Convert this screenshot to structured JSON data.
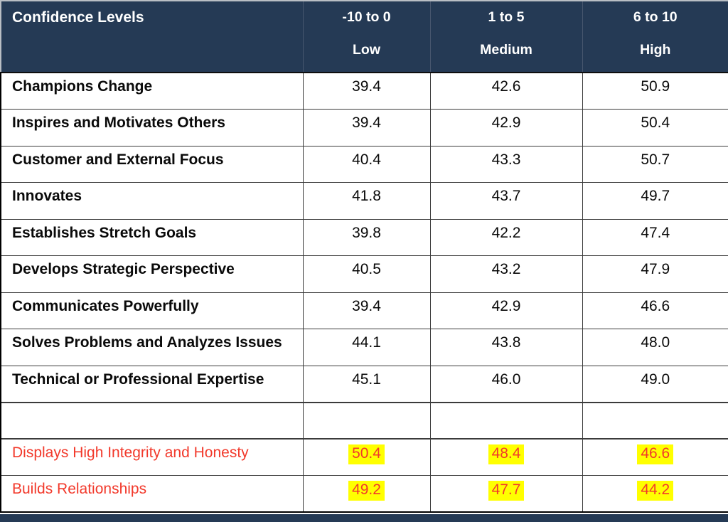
{
  "table": {
    "header": {
      "title": "Confidence Levels",
      "columns": [
        {
          "range": "-10 to 0",
          "label": "Low"
        },
        {
          "range": "1 to 5",
          "label": "Medium"
        },
        {
          "range": "6 to 10",
          "label": "High"
        }
      ]
    },
    "rows": [
      {
        "label": "Champions Change",
        "low": "39.4",
        "medium": "42.6",
        "high": "50.9",
        "style": "normal"
      },
      {
        "label": "Inspires and Motivates Others",
        "low": "39.4",
        "medium": "42.9",
        "high": "50.4",
        "style": "normal"
      },
      {
        "label": "Customer and External Focus",
        "low": "40.4",
        "medium": "43.3",
        "high": "50.7",
        "style": "normal"
      },
      {
        "label": "Innovates",
        "low": "41.8",
        "medium": "43.7",
        "high": "49.7",
        "style": "normal"
      },
      {
        "label": "Establishes Stretch Goals",
        "low": "39.8",
        "medium": "42.2",
        "high": "47.4",
        "style": "normal"
      },
      {
        "label": "Develops Strategic Perspective",
        "low": "40.5",
        "medium": "43.2",
        "high": "47.9",
        "style": "normal"
      },
      {
        "label": "Communicates Powerfully",
        "low": "39.4",
        "medium": "42.9",
        "high": "46.6",
        "style": "normal"
      },
      {
        "label": "Solves Problems and Analyzes Issues",
        "low": "44.1",
        "medium": "43.8",
        "high": "48.0",
        "style": "normal"
      },
      {
        "label": "Technical or Professional Expertise",
        "low": "45.1",
        "medium": "46.0",
        "high": "49.0",
        "style": "normal"
      },
      {
        "label": "",
        "low": "",
        "medium": "",
        "high": "",
        "style": "empty"
      },
      {
        "label": "Displays High Integrity and Honesty",
        "low": "50.4",
        "medium": "48.4",
        "high": "46.6",
        "style": "highlight"
      },
      {
        "label": "Builds Relationships",
        "low": "49.2",
        "medium": "47.7",
        "high": "44.2",
        "style": "highlight"
      }
    ]
  },
  "colors": {
    "header_bg": "#253A55",
    "footer_bg": "#253A55",
    "highlight_text": "#F2392B",
    "highlight_bg": "#FFFF00"
  },
  "chart_data": {
    "type": "table",
    "title": "Confidence Levels",
    "column_headers": [
      "-10 to 0 Low",
      "1 to 5 Medium",
      "6 to 10 High"
    ],
    "categories": [
      "Champions Change",
      "Inspires and Motivates Others",
      "Customer and External Focus",
      "Innovates",
      "Establishes Stretch Goals",
      "Develops Strategic Perspective",
      "Communicates Powerfully",
      "Solves Problems and Analyzes Issues",
      "Technical or Professional Expertise",
      "Displays High Integrity and Honesty",
      "Builds Relationships"
    ],
    "series": [
      {
        "name": "-10 to 0 (Low)",
        "values": [
          39.4,
          39.4,
          40.4,
          41.8,
          39.8,
          40.5,
          39.4,
          44.1,
          45.1,
          50.4,
          49.2
        ]
      },
      {
        "name": "1 to 5 (Medium)",
        "values": [
          42.6,
          42.9,
          43.3,
          43.7,
          42.2,
          43.2,
          42.9,
          43.8,
          46.0,
          48.4,
          47.7
        ]
      },
      {
        "name": "6 to 10 (High)",
        "values": [
          50.9,
          50.4,
          50.7,
          49.7,
          47.4,
          47.9,
          46.6,
          48.0,
          49.0,
          46.6,
          44.2
        ]
      }
    ],
    "highlighted_rows": [
      "Displays High Integrity and Honesty",
      "Builds Relationships"
    ]
  }
}
